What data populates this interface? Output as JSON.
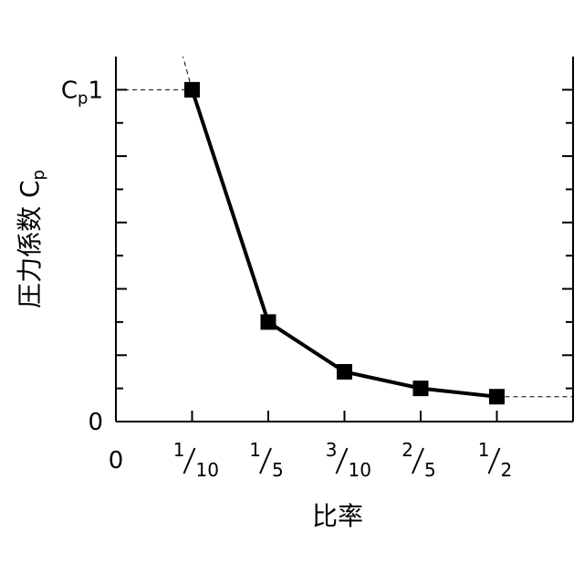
{
  "chart_data": {
    "type": "line",
    "xlabel": "比率",
    "ylabel": "圧力係数 C",
    "ylabel_subscript": "p",
    "x_origin_label": "0",
    "y_ticks": [
      {
        "value": 0,
        "label": "0"
      },
      {
        "value": 1,
        "label": "1",
        "prefix": "C",
        "prefix_subscript": "p"
      }
    ],
    "x_ticks": [
      {
        "value": 0.1,
        "num": "1",
        "den": "10"
      },
      {
        "value": 0.2,
        "num": "1",
        "den": "5"
      },
      {
        "value": 0.3,
        "num": "3",
        "den": "10"
      },
      {
        "value": 0.4,
        "num": "2",
        "den": "5"
      },
      {
        "value": 0.5,
        "num": "1",
        "den": "2"
      }
    ],
    "xlim": [
      0,
      0.6
    ],
    "ylim": [
      0,
      1.1
    ],
    "series": [
      {
        "x": [
          0.1,
          0.2,
          0.3,
          0.4,
          0.5
        ],
        "y": [
          1.0,
          0.3,
          0.15,
          0.1,
          0.075
        ],
        "marker": "square",
        "color": "#000000"
      }
    ],
    "extensions": [
      {
        "from": [
          0.1,
          1.0
        ],
        "to": [
          0.088,
          1.1
        ],
        "style": "dashed"
      },
      {
        "from": [
          0.5,
          0.075
        ],
        "to": [
          0.6,
          0.075
        ],
        "style": "dashed"
      }
    ],
    "reference_lines": [
      {
        "from": [
          0,
          1.0
        ],
        "to": [
          0.1,
          1.0
        ],
        "style": "dashed"
      }
    ],
    "grid": false,
    "legend": "none"
  }
}
